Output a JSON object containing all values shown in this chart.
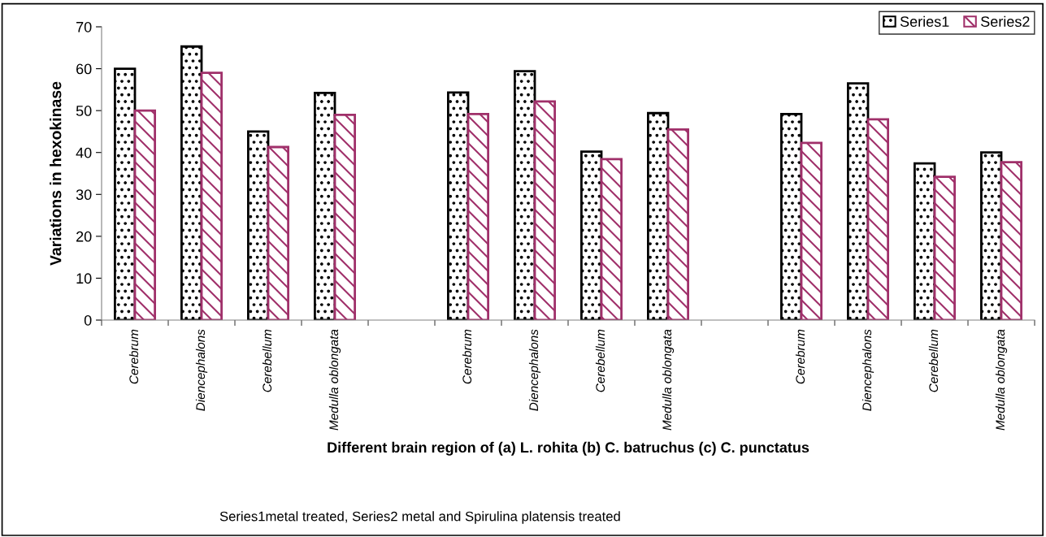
{
  "chart_data": {
    "type": "bar",
    "ylabel": "Variations in hexokinase",
    "xlabel": "Different brain region of (a) L. rohita (b) C. batruchus (c) C. punctatus",
    "annotations": [
      "Series1metal treated, Series2 metal and Spirulina platensis treated"
    ],
    "categories": [
      "Cerebrum",
      "Diencephalons",
      "Cerebellum",
      "Medulla oblongata",
      null,
      "Cerebrum",
      "Diencephalons",
      "Cerebellum",
      "Medulla oblongata",
      null,
      "Cerebrum",
      "Diencephalons",
      "Cerebellum",
      "Medulla oblongata"
    ],
    "series": [
      {
        "name": "Series1",
        "color": "#000000",
        "values": [
          60,
          65.3,
          45,
          54.2,
          null,
          54.3,
          59.4,
          40.2,
          49.4,
          null,
          49.2,
          56.5,
          37.4,
          40
        ]
      },
      {
        "name": "Series2",
        "color": "#a0306a",
        "values": [
          50,
          59,
          41.3,
          49,
          null,
          49.2,
          52.2,
          38.4,
          45.5,
          null,
          42.3,
          47.9,
          34.2,
          37.7
        ]
      }
    ],
    "ylim": [
      0,
      70
    ],
    "yticks": [
      0,
      10,
      20,
      30,
      40,
      50,
      60,
      70
    ],
    "grid": false,
    "legend": "top right"
  }
}
